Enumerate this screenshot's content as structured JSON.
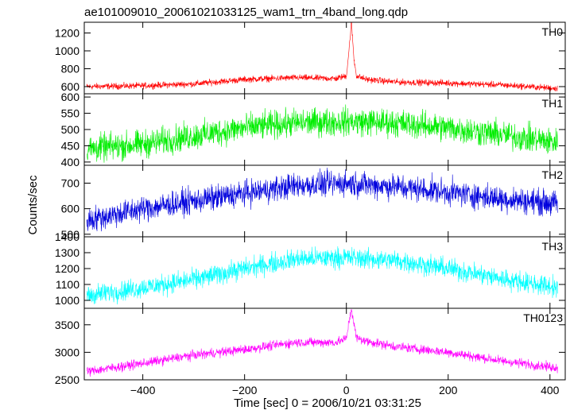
{
  "chart_data": {
    "type": "line",
    "title": "ae101009010_20061021033125_wam1_trn_4band_long.qdp",
    "xlabel": "Time [sec] 0 = 2006/10/21 03:31:25",
    "ylabel": "Counts/sec",
    "xlim": [
      -515,
      430
    ],
    "xticks": [
      -400,
      -200,
      0,
      200,
      400
    ],
    "x_range": [
      -510,
      415
    ],
    "panels": [
      {
        "name": "TH0",
        "color": "#ff0000",
        "ylim": [
          520,
          1320
        ],
        "yticks": [
          600,
          800,
          1000,
          1200
        ],
        "x": [
          -510,
          -400,
          -300,
          -200,
          -100,
          -20,
          0,
          5,
          10,
          15,
          20,
          40,
          100,
          200,
          300,
          415
        ],
        "y": [
          600,
          610,
          630,
          680,
          700,
          690,
          720,
          1000,
          1320,
          900,
          720,
          680,
          650,
          640,
          620,
          580
        ],
        "noise": 25
      },
      {
        "name": "TH1",
        "color": "#00ee00",
        "ylim": [
          390,
          610
        ],
        "yticks": [
          400,
          450,
          500,
          550,
          600
        ],
        "x": [
          -510,
          -400,
          -300,
          -200,
          -100,
          0,
          100,
          200,
          300,
          415
        ],
        "y": [
          440,
          455,
          480,
          505,
          520,
          525,
          520,
          505,
          485,
          460
        ],
        "noise": 30
      },
      {
        "name": "TH2",
        "color": "#0000dd",
        "ylim": [
          490,
          770
        ],
        "yticks": [
          500,
          600,
          700
        ],
        "x": [
          -510,
          -400,
          -300,
          -200,
          -100,
          0,
          100,
          200,
          300,
          415
        ],
        "y": [
          555,
          600,
          630,
          660,
          690,
          700,
          685,
          665,
          640,
          620
        ],
        "noise": 35
      },
      {
        "name": "TH3",
        "color": "#00ffff",
        "ylim": [
          950,
          1400
        ],
        "yticks": [
          1000,
          1100,
          1200,
          1300,
          1400
        ],
        "x": [
          -510,
          -400,
          -300,
          -200,
          -100,
          0,
          100,
          200,
          300,
          415
        ],
        "y": [
          1030,
          1080,
          1130,
          1200,
          1260,
          1270,
          1250,
          1200,
          1140,
          1080
        ],
        "noise": 45
      },
      {
        "name": "TH0123",
        "color": "#ff00ff",
        "ylim": [
          2500,
          3800
        ],
        "yticks": [
          2500,
          3000,
          3500
        ],
        "x": [
          -510,
          -400,
          -300,
          -200,
          -100,
          -20,
          0,
          5,
          10,
          15,
          20,
          40,
          100,
          200,
          300,
          415
        ],
        "y": [
          2650,
          2800,
          2950,
          3050,
          3180,
          3180,
          3250,
          3550,
          3800,
          3500,
          3260,
          3200,
          3100,
          3000,
          2850,
          2720
        ],
        "noise": 60
      }
    ]
  }
}
